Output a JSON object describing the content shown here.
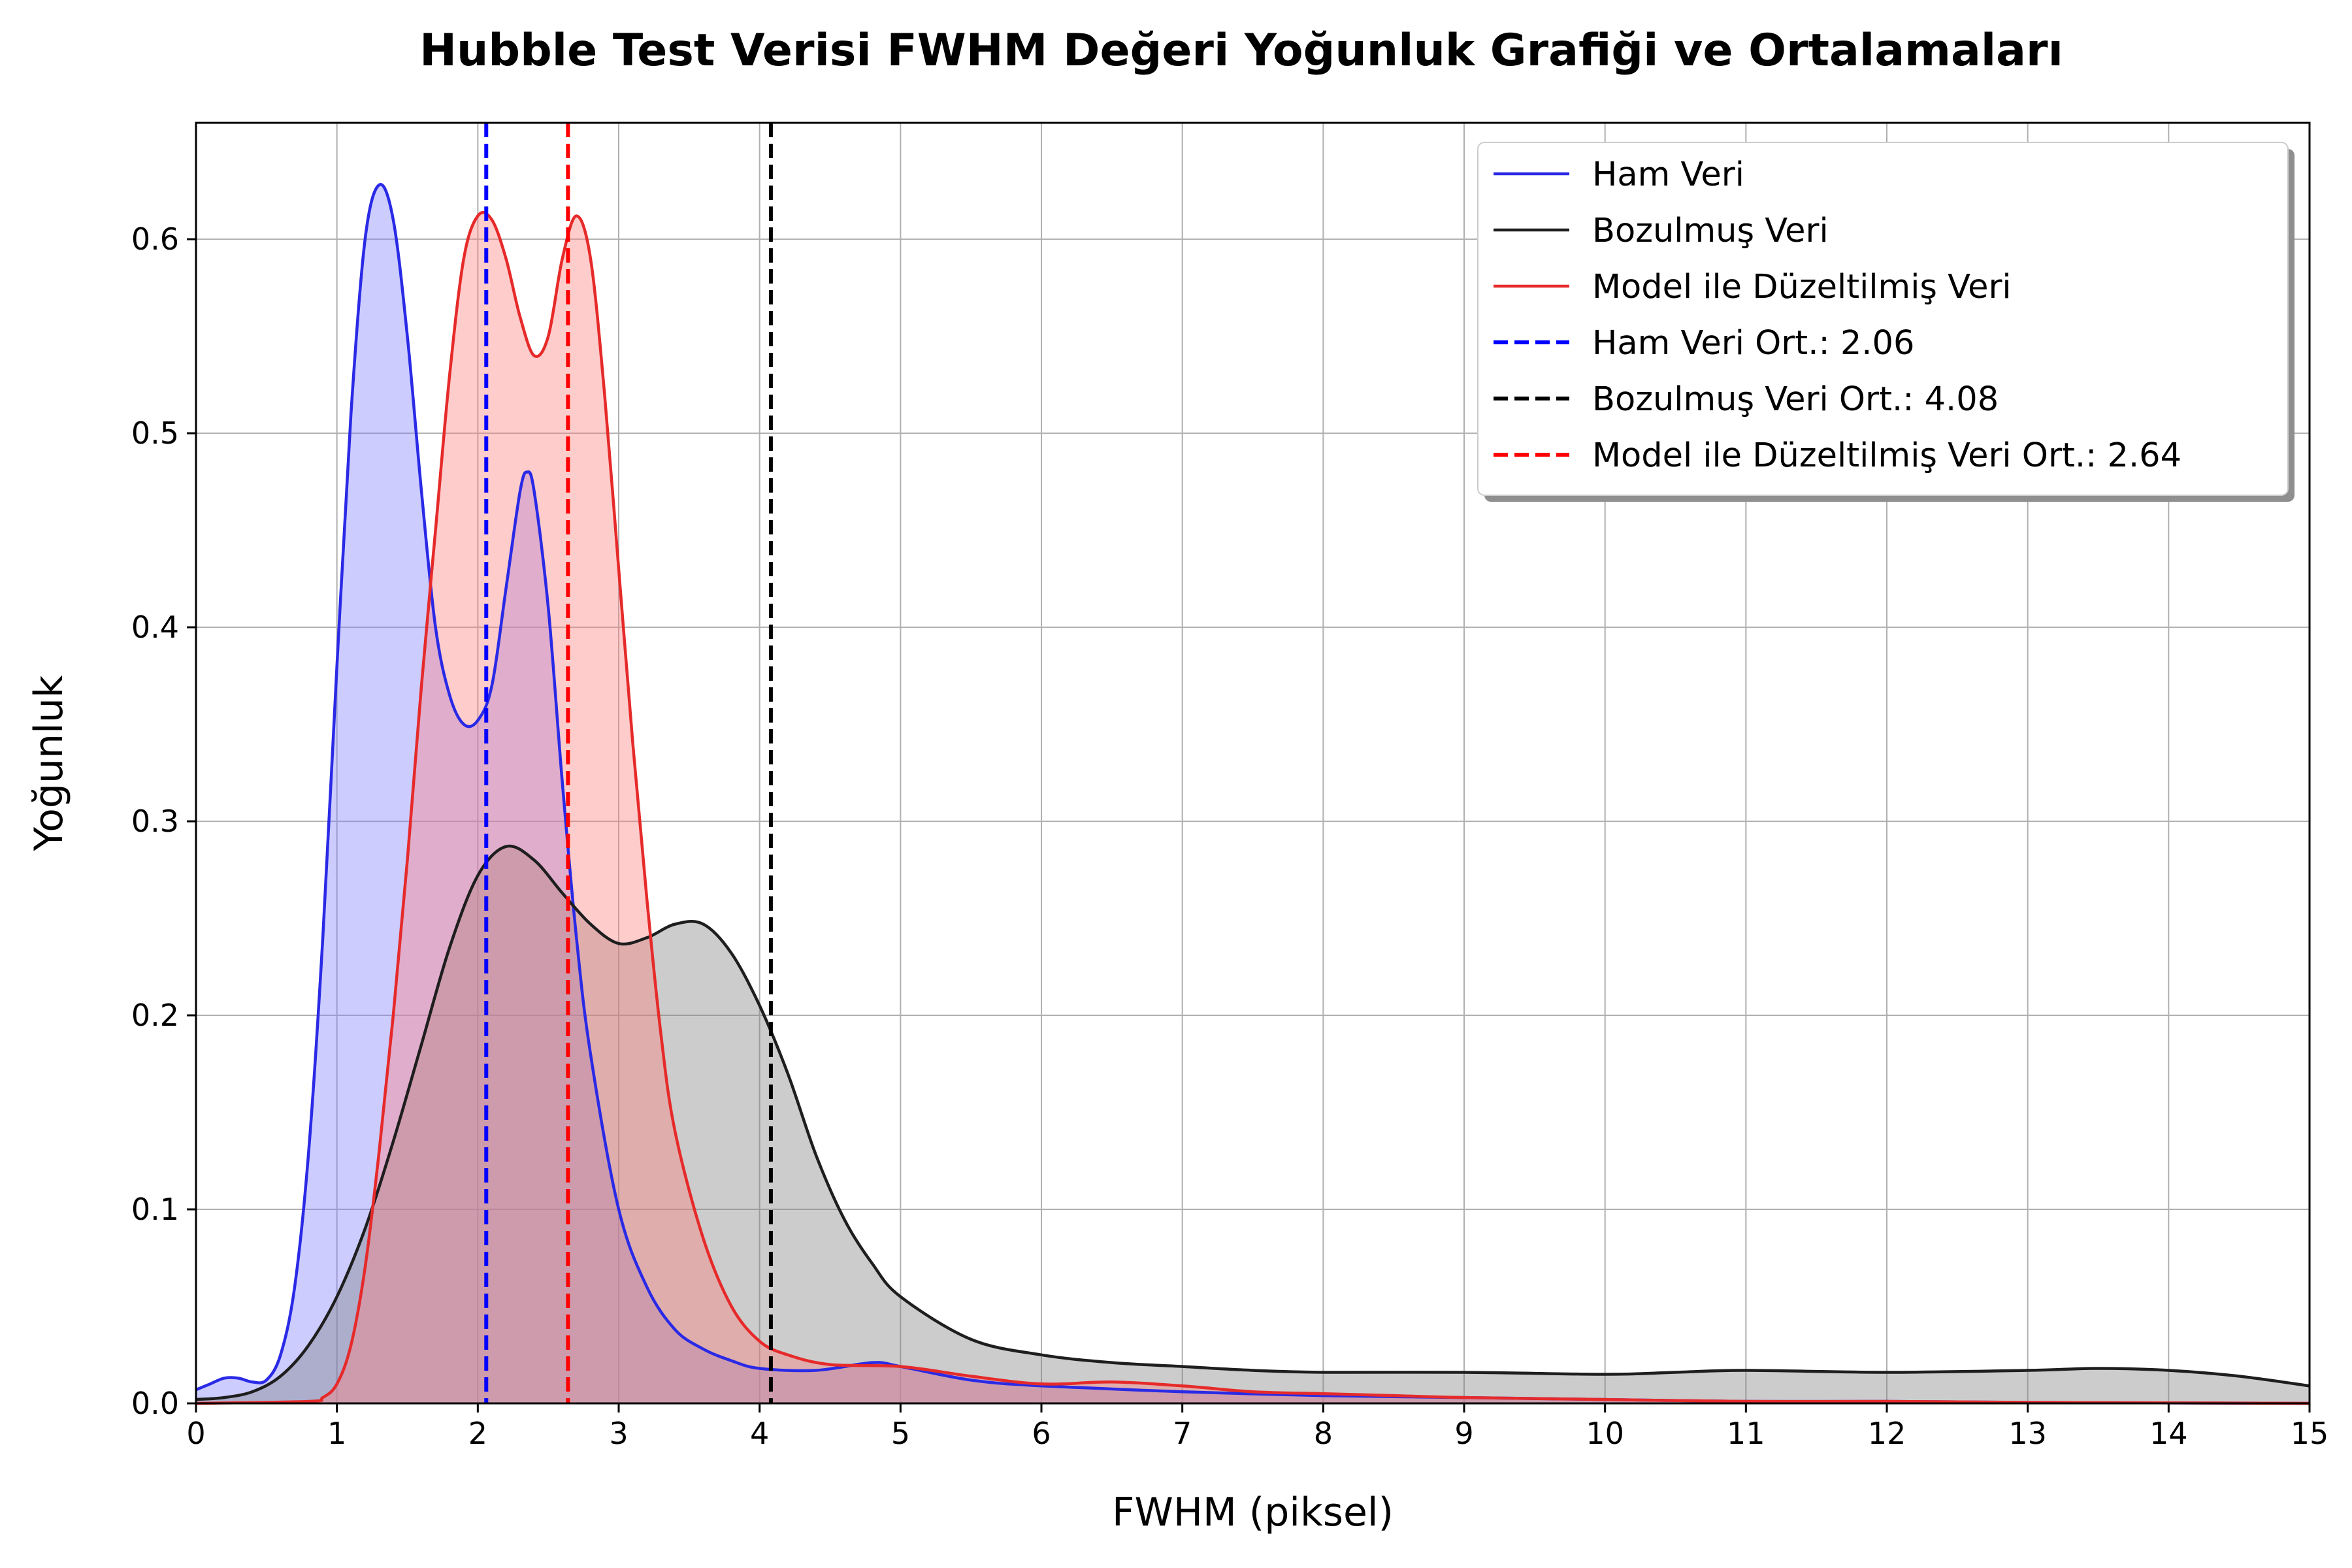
{
  "chart_data": {
    "type": "area",
    "title": "Hubble Test Verisi FWHM Değeri Yoğunluk Grafiği ve Ortalamaları",
    "xlabel": "FWHM (piksel)",
    "ylabel": "Yoğunluk",
    "xlim": [
      0,
      15
    ],
    "ylim": [
      0,
      0.66
    ],
    "xticks": [
      0,
      1,
      2,
      3,
      4,
      5,
      6,
      7,
      8,
      9,
      10,
      11,
      12,
      13,
      14,
      15
    ],
    "yticks": [
      0.0,
      0.1,
      0.2,
      0.3,
      0.4,
      0.5,
      0.6
    ],
    "ytick_labels": [
      "0.0",
      "0.1",
      "0.2",
      "0.3",
      "0.4",
      "0.5",
      "0.6"
    ],
    "grid": true,
    "legend_position": "top-right",
    "series": [
      {
        "name": "Ham Veri",
        "color": "#2a2ae6",
        "fill": "#8080ff",
        "points": [
          [
            0,
            0.007
          ],
          [
            0.1,
            0.01
          ],
          [
            0.2,
            0.013
          ],
          [
            0.3,
            0.013
          ],
          [
            0.4,
            0.011
          ],
          [
            0.5,
            0.012
          ],
          [
            0.6,
            0.025
          ],
          [
            0.7,
            0.06
          ],
          [
            0.8,
            0.13
          ],
          [
            0.9,
            0.24
          ],
          [
            1.0,
            0.38
          ],
          [
            1.1,
            0.51
          ],
          [
            1.2,
            0.6
          ],
          [
            1.3,
            0.628
          ],
          [
            1.4,
            0.61
          ],
          [
            1.5,
            0.55
          ],
          [
            1.6,
            0.47
          ],
          [
            1.7,
            0.4
          ],
          [
            1.8,
            0.365
          ],
          [
            1.9,
            0.35
          ],
          [
            2.0,
            0.352
          ],
          [
            2.1,
            0.37
          ],
          [
            2.2,
            0.42
          ],
          [
            2.3,
            0.47
          ],
          [
            2.35,
            0.48
          ],
          [
            2.4,
            0.47
          ],
          [
            2.5,
            0.41
          ],
          [
            2.6,
            0.32
          ],
          [
            2.7,
            0.24
          ],
          [
            2.8,
            0.18
          ],
          [
            3.0,
            0.1
          ],
          [
            3.2,
            0.06
          ],
          [
            3.4,
            0.038
          ],
          [
            3.6,
            0.028
          ],
          [
            3.8,
            0.022
          ],
          [
            4.0,
            0.018
          ],
          [
            4.4,
            0.017
          ],
          [
            4.8,
            0.021
          ],
          [
            5.0,
            0.019
          ],
          [
            5.5,
            0.012
          ],
          [
            6.0,
            0.009
          ],
          [
            7.0,
            0.006
          ],
          [
            8.0,
            0.004
          ],
          [
            9.0,
            0.003
          ],
          [
            10.0,
            0.002
          ],
          [
            11.0,
            0.001
          ],
          [
            12.0,
            0.001
          ],
          [
            13.0,
            0.0005
          ],
          [
            15.0,
            0.0
          ]
        ]
      },
      {
        "name": "Bozulmuş Veri",
        "color": "#1e1e1e",
        "fill": "#808080",
        "points": [
          [
            0,
            0.002
          ],
          [
            0.2,
            0.003
          ],
          [
            0.4,
            0.006
          ],
          [
            0.6,
            0.014
          ],
          [
            0.8,
            0.03
          ],
          [
            1.0,
            0.055
          ],
          [
            1.2,
            0.09
          ],
          [
            1.4,
            0.135
          ],
          [
            1.6,
            0.185
          ],
          [
            1.8,
            0.235
          ],
          [
            2.0,
            0.272
          ],
          [
            2.2,
            0.287
          ],
          [
            2.4,
            0.28
          ],
          [
            2.6,
            0.263
          ],
          [
            2.8,
            0.247
          ],
          [
            3.0,
            0.237
          ],
          [
            3.2,
            0.24
          ],
          [
            3.4,
            0.247
          ],
          [
            3.6,
            0.247
          ],
          [
            3.8,
            0.232
          ],
          [
            4.0,
            0.205
          ],
          [
            4.2,
            0.17
          ],
          [
            4.4,
            0.128
          ],
          [
            4.6,
            0.095
          ],
          [
            4.8,
            0.072
          ],
          [
            5.0,
            0.055
          ],
          [
            5.5,
            0.033
          ],
          [
            6.0,
            0.025
          ],
          [
            6.5,
            0.021
          ],
          [
            7.0,
            0.019
          ],
          [
            7.5,
            0.017
          ],
          [
            8.0,
            0.016
          ],
          [
            9.0,
            0.016
          ],
          [
            10.0,
            0.015
          ],
          [
            10.5,
            0.016
          ],
          [
            11.0,
            0.017
          ],
          [
            12.0,
            0.016
          ],
          [
            13.0,
            0.017
          ],
          [
            13.5,
            0.018
          ],
          [
            14.0,
            0.017
          ],
          [
            14.5,
            0.014
          ],
          [
            15.0,
            0.009
          ]
        ]
      },
      {
        "name": "Model ile Düzeltilmiş Veri",
        "color": "#e62a2a",
        "fill": "#ff8080",
        "points": [
          [
            0,
            0.0
          ],
          [
            0.8,
            0.001
          ],
          [
            0.9,
            0.003
          ],
          [
            1.0,
            0.01
          ],
          [
            1.1,
            0.03
          ],
          [
            1.2,
            0.07
          ],
          [
            1.3,
            0.13
          ],
          [
            1.4,
            0.2
          ],
          [
            1.5,
            0.28
          ],
          [
            1.6,
            0.37
          ],
          [
            1.7,
            0.45
          ],
          [
            1.8,
            0.53
          ],
          [
            1.9,
            0.59
          ],
          [
            2.0,
            0.612
          ],
          [
            2.1,
            0.61
          ],
          [
            2.2,
            0.59
          ],
          [
            2.3,
            0.56
          ],
          [
            2.4,
            0.54
          ],
          [
            2.5,
            0.55
          ],
          [
            2.6,
            0.59
          ],
          [
            2.7,
            0.612
          ],
          [
            2.8,
            0.59
          ],
          [
            2.9,
            0.52
          ],
          [
            3.0,
            0.43
          ],
          [
            3.1,
            0.34
          ],
          [
            3.2,
            0.26
          ],
          [
            3.3,
            0.19
          ],
          [
            3.4,
            0.14
          ],
          [
            3.6,
            0.085
          ],
          [
            3.8,
            0.05
          ],
          [
            4.0,
            0.032
          ],
          [
            4.2,
            0.025
          ],
          [
            4.5,
            0.02
          ],
          [
            5.0,
            0.019
          ],
          [
            5.5,
            0.014
          ],
          [
            6.0,
            0.01
          ],
          [
            6.5,
            0.011
          ],
          [
            7.0,
            0.009
          ],
          [
            7.5,
            0.006
          ],
          [
            8.0,
            0.005
          ],
          [
            8.5,
            0.004
          ],
          [
            9.0,
            0.003
          ],
          [
            10.0,
            0.002
          ],
          [
            11.0,
            0.001
          ],
          [
            12.0,
            0.001
          ],
          [
            13.0,
            0.0005
          ],
          [
            15.0,
            0.0
          ]
        ]
      }
    ],
    "vlines": [
      {
        "name": "Ham Veri Ort.: 2.06",
        "x": 2.06,
        "color": "#0000ff"
      },
      {
        "name": "Bozulmuş Veri Ort.: 4.08",
        "x": 4.08,
        "color": "#000000"
      },
      {
        "name": "Model ile Düzeltilmiş Veri Ort.: 2.64",
        "x": 2.64,
        "color": "#ff0000"
      }
    ]
  }
}
